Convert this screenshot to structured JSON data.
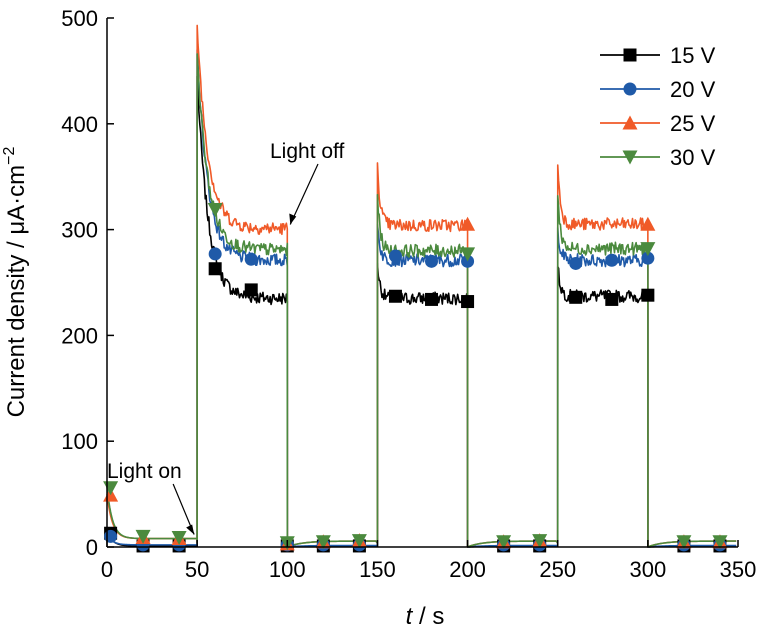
{
  "chart_data": {
    "type": "line",
    "xlabel_var": "t",
    "xlabel_unit": " / s",
    "ylabel": "Current density / μA·cm",
    "ylabel_sup": "−2",
    "xlim": [
      0,
      350
    ],
    "ylim": [
      0,
      500
    ],
    "xticks": [
      0,
      50,
      100,
      150,
      200,
      250,
      300,
      350
    ],
    "yticks": [
      0,
      100,
      200,
      300,
      400,
      500
    ],
    "grid": false,
    "legend_position": "top-right",
    "light_periods": [
      [
        50,
        100
      ],
      [
        150,
        200
      ],
      [
        250,
        300
      ]
    ],
    "series": [
      {
        "name": "15 V",
        "color": "#000000",
        "marker": "square",
        "dark_start": 15,
        "dark_base": 1,
        "cycles": [
          {
            "peak": 445,
            "steady": 235
          },
          {
            "peak": 268,
            "steady": 235
          },
          {
            "peak": 265,
            "steady": 237
          }
        ],
        "marker_points": [
          [
            2,
            13
          ],
          [
            20,
            1
          ],
          [
            40,
            1
          ],
          [
            60,
            263
          ],
          [
            80,
            243
          ],
          [
            100,
            1
          ],
          [
            120,
            1
          ],
          [
            140,
            1
          ],
          [
            160,
            237
          ],
          [
            180,
            234
          ],
          [
            200,
            232
          ],
          [
            220,
            1
          ],
          [
            240,
            1
          ],
          [
            260,
            236
          ],
          [
            280,
            234
          ],
          [
            300,
            238
          ],
          [
            320,
            1
          ],
          [
            340,
            1
          ]
        ]
      },
      {
        "name": "20 V",
        "color": "#1f5aa8",
        "marker": "circle",
        "dark_start": 12,
        "dark_base": 2,
        "cycles": [
          {
            "peak": 470,
            "steady": 271
          },
          {
            "peak": 305,
            "steady": 271
          },
          {
            "peak": 302,
            "steady": 271
          }
        ],
        "marker_points": [
          [
            2,
            10
          ],
          [
            20,
            2
          ],
          [
            40,
            2
          ],
          [
            60,
            277
          ],
          [
            80,
            272
          ],
          [
            100,
            2
          ],
          [
            120,
            2
          ],
          [
            140,
            2
          ],
          [
            160,
            275
          ],
          [
            180,
            270
          ],
          [
            200,
            270
          ],
          [
            220,
            2
          ],
          [
            240,
            2
          ],
          [
            260,
            268
          ],
          [
            280,
            271
          ],
          [
            300,
            273
          ],
          [
            320,
            2
          ],
          [
            340,
            2
          ]
        ]
      },
      {
        "name": "25 V",
        "color": "#f05a28",
        "marker": "triangle-up",
        "dark_start": 50,
        "dark_base": 8,
        "cycles": [
          {
            "peak": 493,
            "steady": 301
          },
          {
            "peak": 363,
            "steady": 304
          },
          {
            "peak": 361,
            "steady": 305
          }
        ],
        "marker_points": [
          [
            2,
            49
          ],
          [
            20,
            9
          ],
          [
            40,
            8
          ],
          [
            100,
            3
          ],
          [
            120,
            5
          ],
          [
            140,
            6
          ],
          [
            200,
            305
          ],
          [
            220,
            5
          ],
          [
            240,
            6
          ],
          [
            300,
            305
          ],
          [
            320,
            5
          ],
          [
            340,
            5
          ]
        ]
      },
      {
        "name": "30 V",
        "color": "#4b8a3e",
        "marker": "triangle-down",
        "dark_start": 57,
        "dark_base": 8,
        "cycles": [
          {
            "peak": 466,
            "steady": 281
          },
          {
            "peak": 333,
            "steady": 280
          },
          {
            "peak": 332,
            "steady": 282
          }
        ],
        "marker_points": [
          [
            2,
            56
          ],
          [
            20,
            10
          ],
          [
            40,
            9
          ],
          [
            60,
            319
          ],
          [
            100,
            4
          ],
          [
            120,
            5
          ],
          [
            140,
            6
          ],
          [
            200,
            277
          ],
          [
            220,
            5
          ],
          [
            240,
            6
          ],
          [
            300,
            282
          ],
          [
            320,
            5
          ],
          [
            340,
            5
          ]
        ]
      }
    ],
    "annotations": [
      {
        "text": "Light on",
        "at": [
          50,
          8
        ]
      },
      {
        "text": "Light off",
        "at": [
          100,
          301
        ]
      }
    ]
  }
}
